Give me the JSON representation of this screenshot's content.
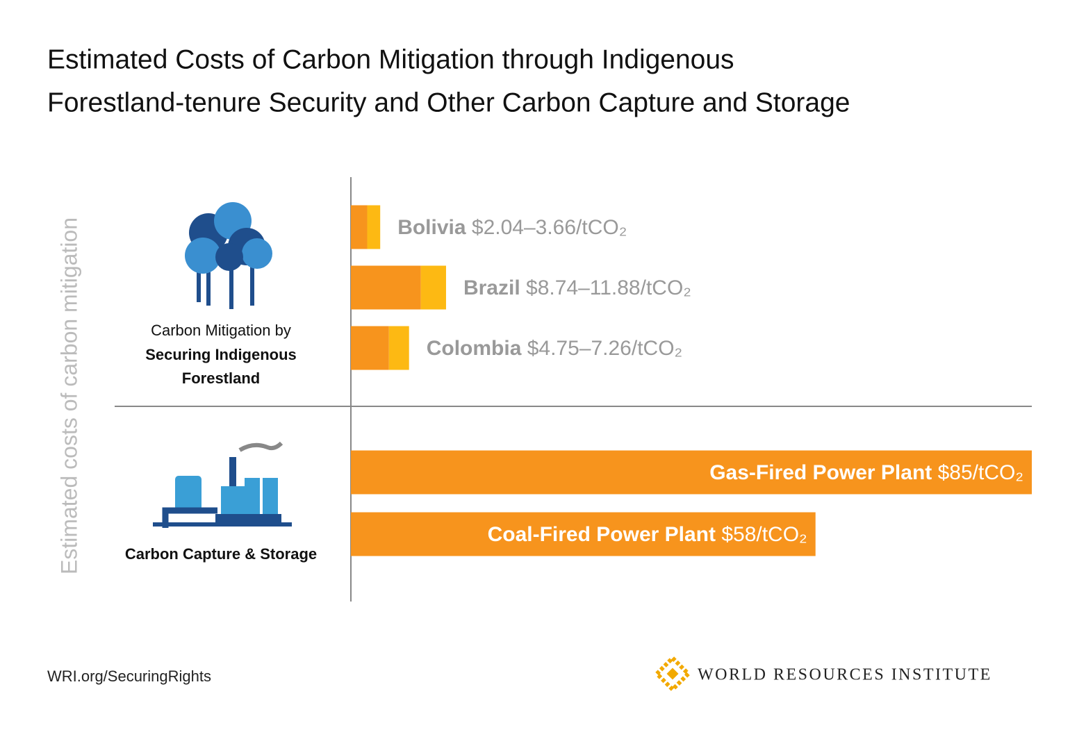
{
  "chart_data": {
    "type": "range-bar",
    "title": [
      "Estimated Costs of Carbon Mitigation through Indigenous",
      "Forestland-tenure Security and Other Carbon Capture and Storage"
    ],
    "y_label": "Estimated costs of carbon mitigation",
    "xlim": [
      0,
      85
    ],
    "colors": {
      "low": "#f7941d",
      "high": "#fdb913"
    },
    "groups": [
      {
        "label_lines": [
          "Carbon Mitigation by",
          "Securing Indigenous",
          "Forestland"
        ],
        "categories": [
          "Bolivia",
          "Brazil",
          "Colombia"
        ],
        "low": [
          2.04,
          8.74,
          4.75
        ],
        "high": [
          3.66,
          11.88,
          7.26
        ],
        "value_labels": [
          "$2.04–3.66/tCO₂",
          "$8.74–11.88/tCO₂",
          "$4.75–7.26/tCO₂"
        ]
      },
      {
        "label_lines": [
          "Carbon Capture & Storage"
        ],
        "categories": [
          "Gas-Fired Power Plant",
          "Coal-Fired Power Plant"
        ],
        "values": [
          85,
          58
        ],
        "value_labels": [
          "$85/tCO₂",
          "$58/tCO₂"
        ]
      }
    ]
  },
  "footer": {
    "url": "WRI.org/SecuringRights",
    "logo": "WORLD RESOURCES INSTITUTE"
  }
}
